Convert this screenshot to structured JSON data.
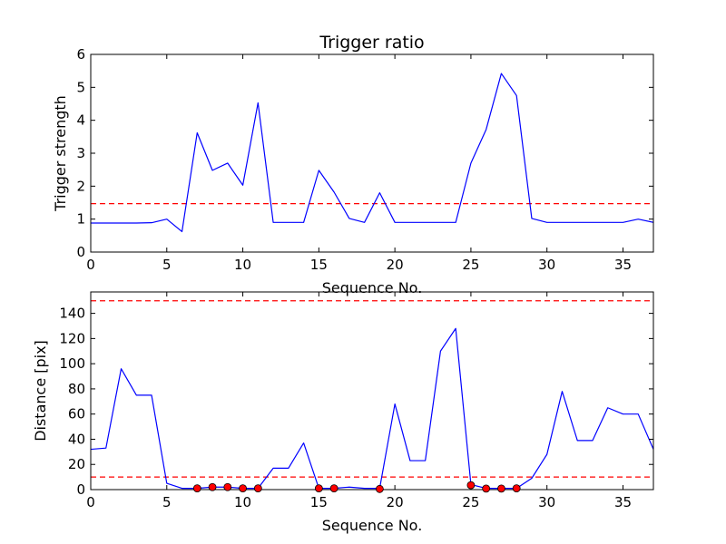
{
  "chart_data": [
    {
      "type": "line",
      "title": "Trigger ratio",
      "xlabel": "Sequence No.",
      "ylabel": "Trigger strength",
      "xlim": [
        0,
        37
      ],
      "ylim": [
        0,
        6
      ],
      "xticks": [
        0,
        5,
        10,
        15,
        20,
        25,
        30,
        35
      ],
      "yticks": [
        0,
        1,
        2,
        3,
        4,
        5,
        6
      ],
      "grid": false,
      "series": [
        {
          "color": "#0000ff",
          "x": [
            0,
            1,
            2,
            3,
            4,
            5,
            6,
            7,
            8,
            9,
            10,
            11,
            12,
            13,
            14,
            15,
            16,
            17,
            18,
            19,
            20,
            21,
            22,
            23,
            24,
            25,
            26,
            27,
            28,
            29,
            30,
            31,
            32,
            33,
            34,
            35,
            36,
            37
          ],
          "y": [
            0.88,
            0.88,
            0.88,
            0.88,
            0.89,
            1.0,
            0.62,
            3.62,
            2.48,
            2.7,
            2.03,
            4.53,
            0.9,
            0.9,
            0.9,
            2.48,
            1.82,
            1.02,
            0.9,
            1.8,
            0.9,
            0.9,
            0.9,
            0.9,
            0.9,
            2.7,
            3.72,
            5.42,
            4.75,
            1.02,
            0.9,
            0.9,
            0.9,
            0.9,
            0.9,
            0.9,
            1.0,
            0.9
          ]
        }
      ],
      "hlines": [
        {
          "y": 1.47,
          "color": "#ff0000",
          "style": "dashed"
        }
      ]
    },
    {
      "type": "line",
      "title": "",
      "xlabel": "Sequence No.",
      "ylabel": "Distance [pix]",
      "xlim": [
        0,
        37
      ],
      "ylim": [
        0,
        157
      ],
      "xticks": [
        0,
        5,
        10,
        15,
        20,
        25,
        30,
        35
      ],
      "yticks": [
        0,
        20,
        40,
        60,
        80,
        100,
        120,
        140
      ],
      "grid": false,
      "series": [
        {
          "color": "#0000ff",
          "x": [
            0,
            1,
            2,
            3,
            4,
            5,
            6,
            7,
            8,
            9,
            10,
            11,
            12,
            13,
            14,
            15,
            16,
            17,
            18,
            19,
            20,
            21,
            22,
            23,
            24,
            25,
            26,
            27,
            28,
            29,
            30,
            31,
            32,
            33,
            34,
            35,
            36,
            37
          ],
          "y": [
            32,
            33,
            96,
            75,
            75,
            5,
            1,
            1,
            2,
            2,
            1,
            1,
            17,
            17,
            37,
            1,
            1,
            2,
            1,
            1,
            68,
            23,
            23,
            110,
            128,
            4,
            1,
            1,
            1,
            9,
            28,
            78,
            39,
            39,
            65,
            60,
            60,
            32
          ]
        }
      ],
      "markers": {
        "color": "#ff0000",
        "x": [
          7,
          8,
          9,
          10,
          11,
          15,
          16,
          19,
          25,
          26,
          27,
          28
        ],
        "y": [
          1,
          2,
          2,
          1,
          1,
          1,
          1,
          0.5,
          3.5,
          0.8,
          0.8,
          1
        ]
      },
      "hlines": [
        {
          "y": 150,
          "color": "#ff0000",
          "style": "dashed"
        },
        {
          "y": 10,
          "color": "#ff0000",
          "style": "dashed"
        }
      ]
    }
  ]
}
